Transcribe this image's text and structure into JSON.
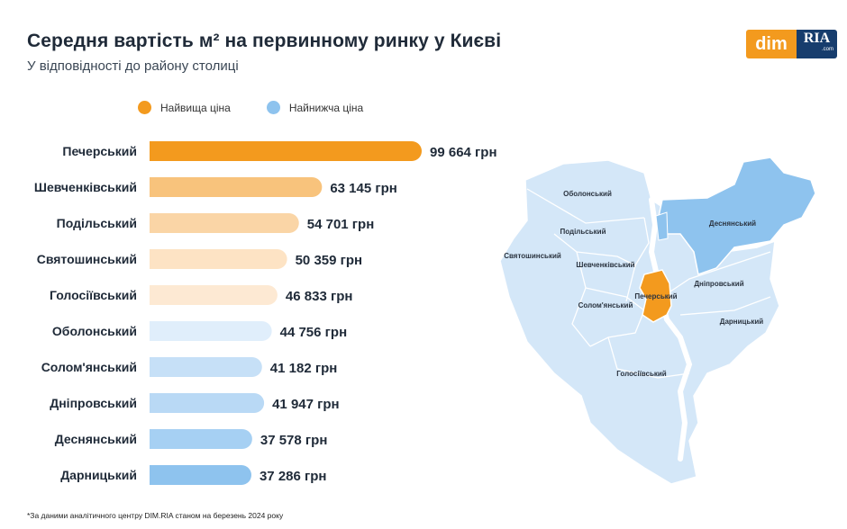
{
  "title": "Середня вартість м² на первинному ринку у Києві",
  "subtitle": "У відповідності до району столиці",
  "logo": {
    "left": "dim",
    "right": "RIA",
    "right_small": ".com"
  },
  "legend": [
    {
      "label": "Найвища ціна",
      "color": "#f39a1e"
    },
    {
      "label": "Найнижча ціна",
      "color": "#8ec3ee"
    }
  ],
  "chart_data": {
    "type": "bar",
    "orientation": "horizontal",
    "unit": "грн",
    "categories": [
      "Печерський",
      "Шевченківський",
      "Подільський",
      "Святошинський",
      "Голосіївський",
      "Оболонський",
      "Солом'янський",
      "Дніпровський",
      "Деснянський",
      "Дарницький"
    ],
    "values": [
      99664,
      63145,
      54701,
      50359,
      46833,
      44756,
      41182,
      41947,
      37578,
      37286
    ],
    "value_labels": [
      "99 664 грн",
      "63 145 грн",
      "54 701 грн",
      "50 359 грн",
      "46 833 грн",
      "44 756 грн",
      "41 182 грн",
      "41 947 грн",
      "37 578 грн",
      "37 286 грн"
    ],
    "bar_colors": [
      "#f39a1e",
      "#f8c37c",
      "#fad5a6",
      "#fde3c4",
      "#fde9d3",
      "#e0eefb",
      "#c6e0f7",
      "#b9d9f5",
      "#a6d0f3",
      "#8ec3ee"
    ],
    "grid": false
  },
  "map": {
    "highlight_high": "#f39a1e",
    "highlight_low": "#8ec3ee",
    "base_color": "#d4e7f8",
    "labels": [
      "Оболонський",
      "Подільський",
      "Святошинський",
      "Шевченківський",
      "Печерський",
      "Солом'янський",
      "Деснянський",
      "Дніпровський",
      "Дарницький",
      "Голосіївський"
    ]
  },
  "footnote": "*За даними аналітичного центру DIM.RIA станом на березень 2024 року"
}
